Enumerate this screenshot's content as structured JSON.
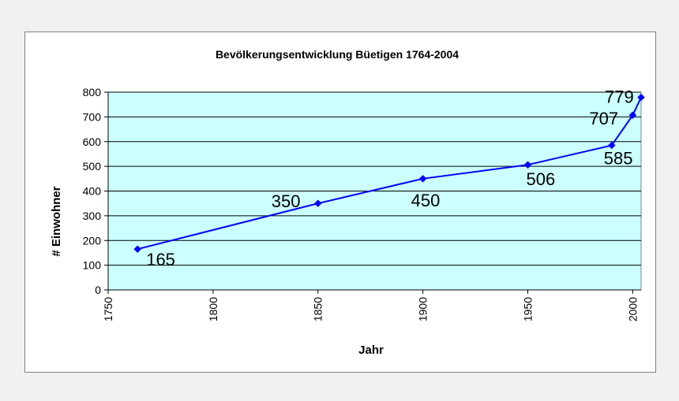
{
  "chart_data": {
    "type": "line",
    "title": "Bevölkerungsentwicklung Büetigen 1764-2004",
    "xlabel": "Jahr",
    "ylabel": "# Einwohner",
    "xlim": [
      1750,
      2004
    ],
    "ylim": [
      0,
      800
    ],
    "xticks": [
      1750,
      1800,
      1850,
      1900,
      1950,
      2000
    ],
    "yticks": [
      0,
      100,
      200,
      300,
      400,
      500,
      600,
      700,
      800
    ],
    "grid": "horizontal",
    "legend": "none",
    "colors": {
      "plot_background": "#ccffff",
      "series": "#0000ff",
      "gridline": "#000000"
    },
    "series": [
      {
        "x": [
          1764,
          1850,
          1900,
          1950,
          1990,
          2000,
          2004
        ],
        "y": [
          165,
          350,
          450,
          506,
          585,
          707,
          779
        ],
        "labels": [
          "165",
          "350",
          "450",
          "506",
          "585",
          "707",
          "779"
        ]
      }
    ]
  }
}
